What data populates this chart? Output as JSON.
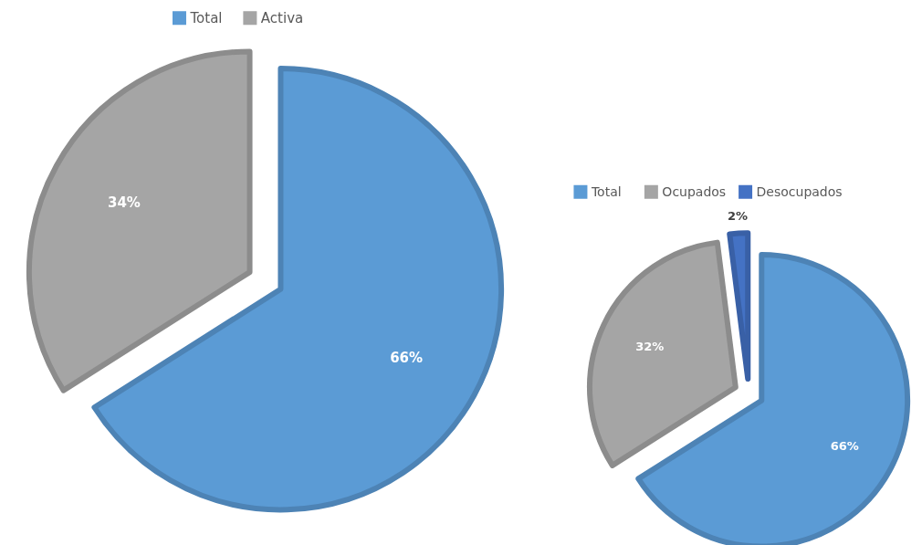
{
  "chart_data": [
    {
      "type": "pie",
      "categories": [
        "Total",
        "Activa"
      ],
      "values": [
        66,
        34
      ],
      "colors": [
        "#5b9bd5",
        "#a5a5a5"
      ],
      "value_labels": [
        "66%",
        "34%"
      ],
      "legend": "top"
    },
    {
      "type": "pie",
      "categories": [
        "Total",
        "Ocupados",
        "Desocupados"
      ],
      "values": [
        66,
        32,
        2
      ],
      "colors": [
        "#5b9bd5",
        "#a5a5a5",
        "#4472c4"
      ],
      "value_labels": [
        "66%",
        "32%",
        "2%"
      ],
      "legend": "top"
    }
  ]
}
